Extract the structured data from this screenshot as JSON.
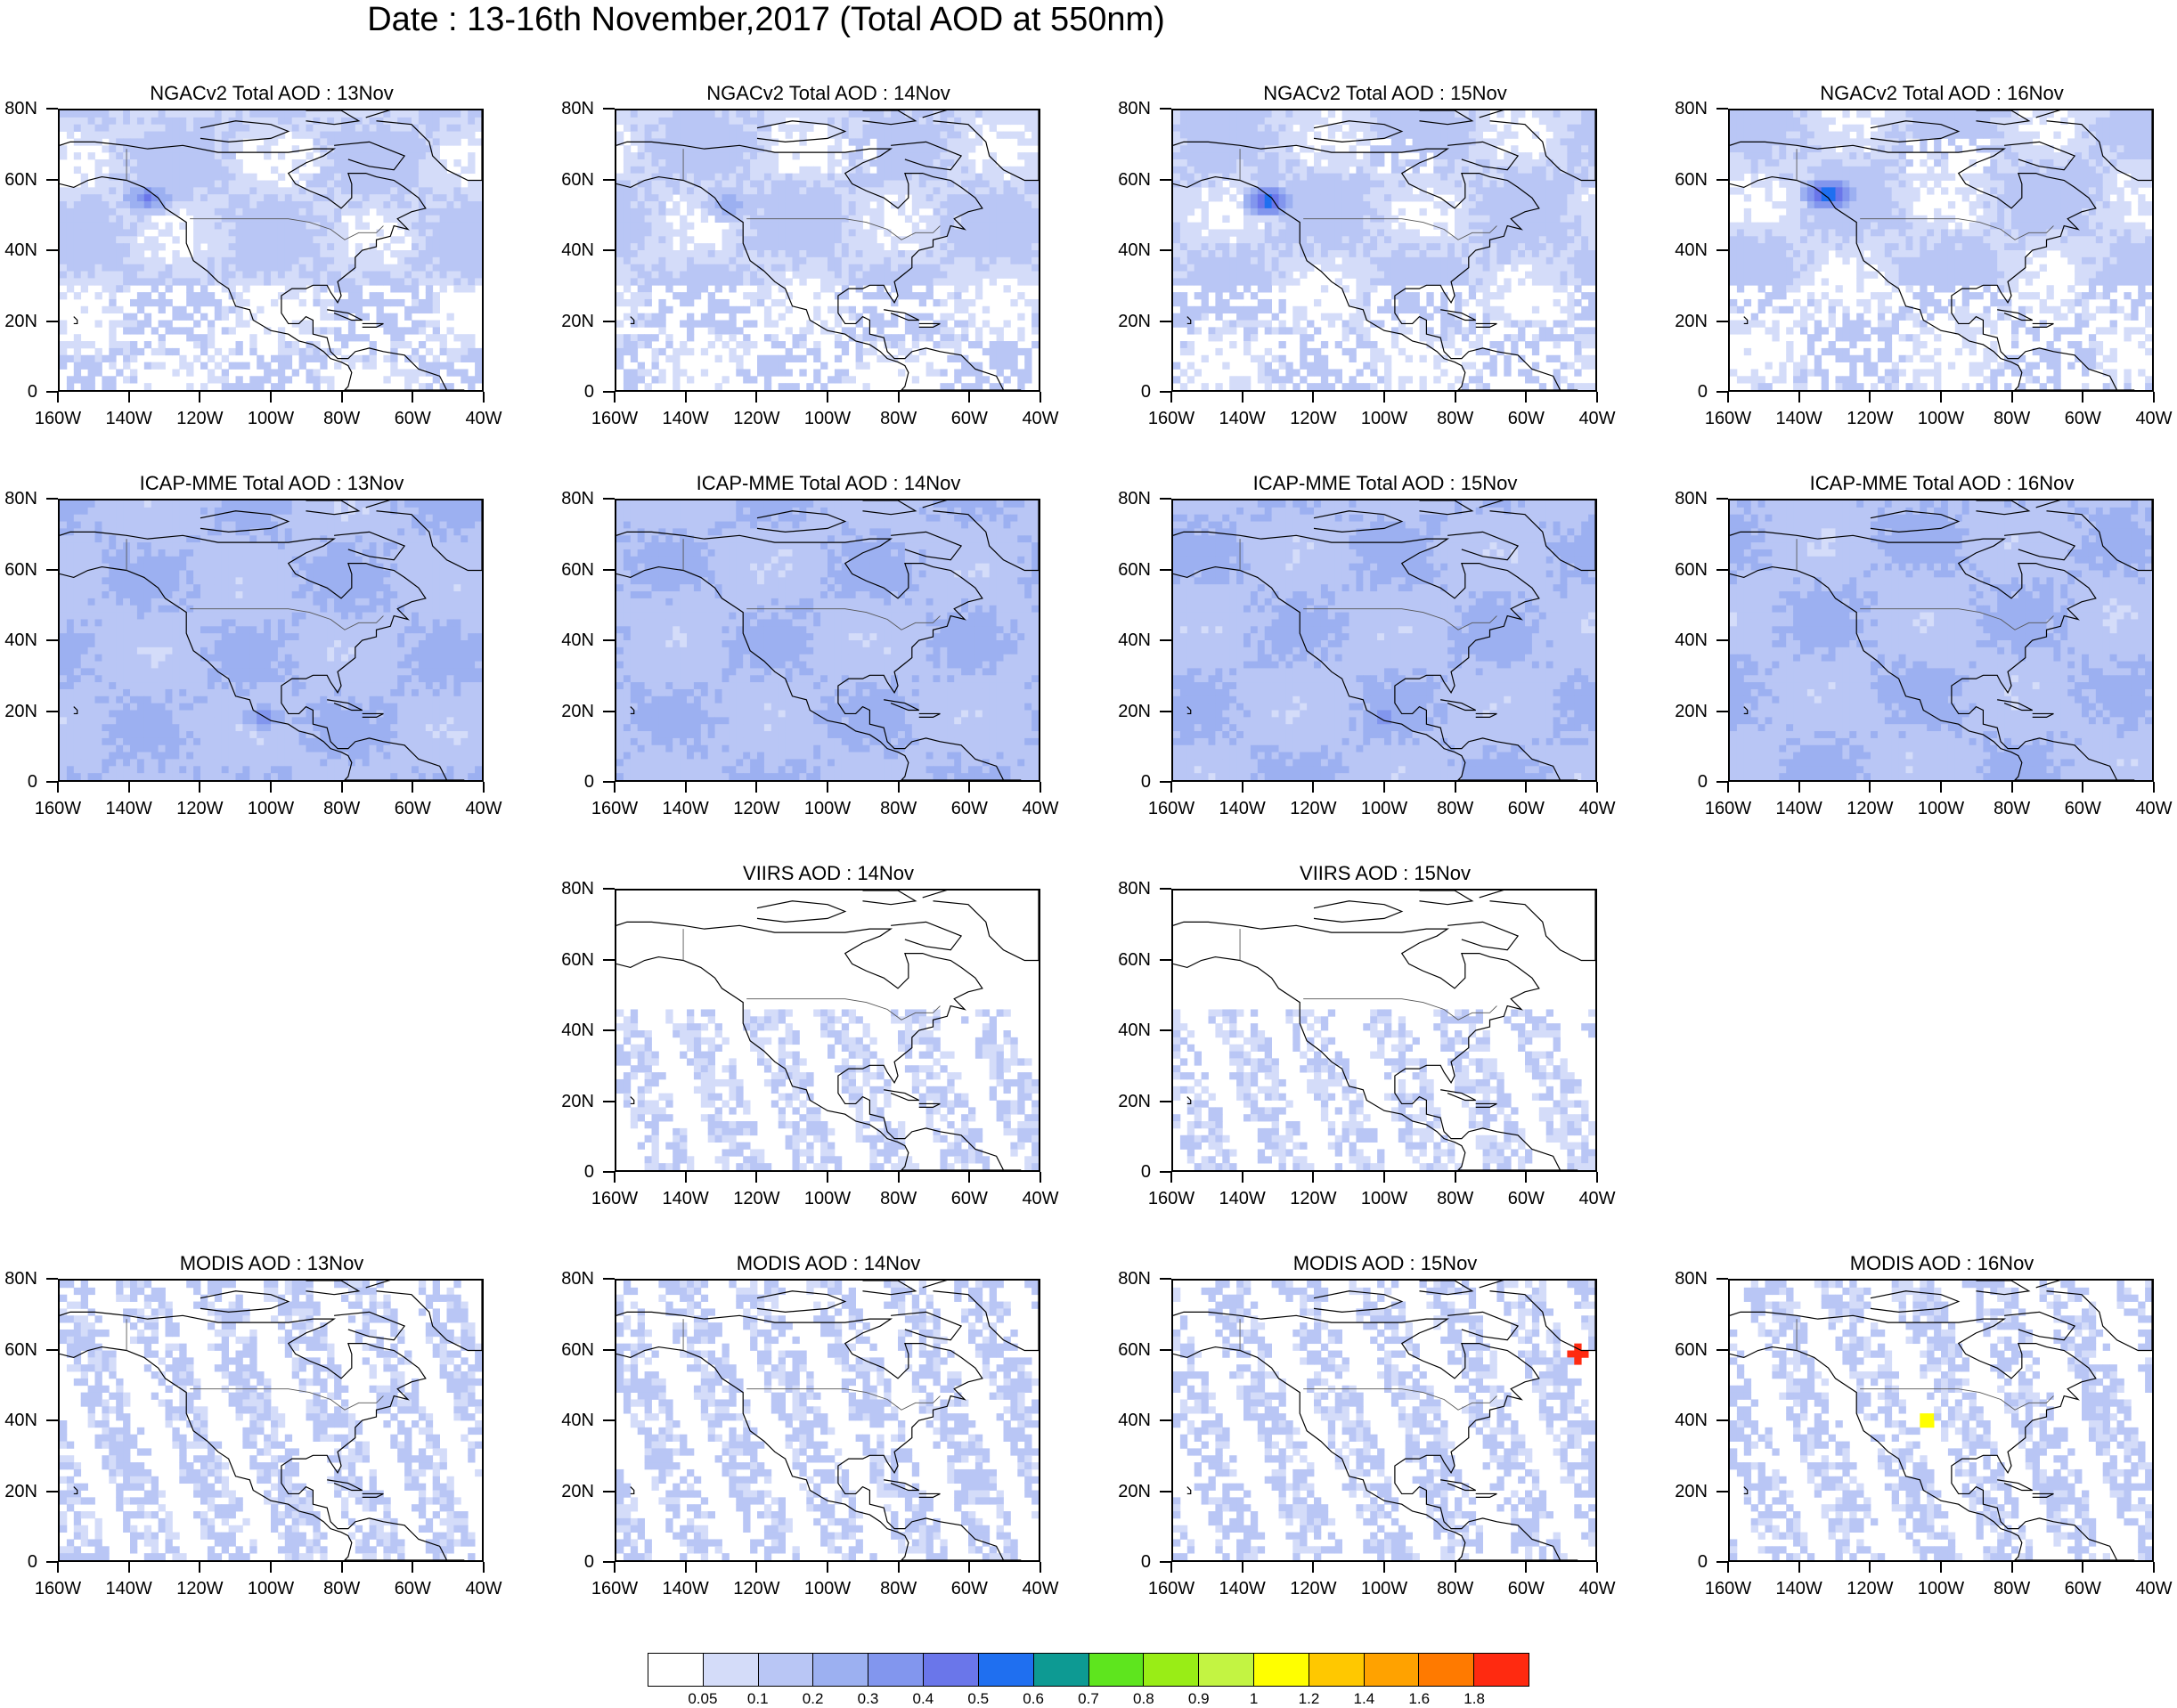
{
  "title": "Date : 13-16th November,2017 (Total AOD at 550nm)",
  "axes": {
    "lat_labels": [
      "80N",
      "60N",
      "40N",
      "20N",
      "0"
    ],
    "lon_labels": [
      "160W",
      "140W",
      "120W",
      "100W",
      "80W",
      "60W",
      "40W"
    ],
    "lat_range": [
      0,
      80
    ],
    "lon_range": [
      -160,
      -40
    ]
  },
  "panels": [
    {
      "title": "NGACv2 Total AOD : 13Nov",
      "model": "NGACv2",
      "day": "13Nov",
      "coverage": "full",
      "base_aod": 0.1,
      "background": "light",
      "plume": [
        -135,
        55,
        0.45
      ]
    },
    {
      "title": "NGACv2 Total AOD : 14Nov",
      "model": "NGACv2",
      "day": "14Nov",
      "coverage": "full",
      "base_aod": 0.1,
      "background": "light",
      "plume": [
        -128,
        53,
        0.3
      ]
    },
    {
      "title": "NGACv2 Total AOD : 15Nov",
      "model": "NGACv2",
      "day": "15Nov",
      "coverage": "full",
      "base_aod": 0.1,
      "background": "light",
      "plume": [
        -133,
        54,
        0.6
      ]
    },
    {
      "title": "NGACv2 Total AOD : 16Nov",
      "model": "NGACv2",
      "day": "16Nov",
      "coverage": "full",
      "base_aod": 0.1,
      "background": "light",
      "plume": [
        -132,
        56,
        0.65
      ]
    },
    {
      "title": "ICAP-MME Total AOD : 13Nov",
      "model": "ICAP-MME",
      "day": "13Nov",
      "coverage": "full",
      "base_aod": 0.15,
      "background": "medium",
      "plume": [
        -102,
        18,
        0.4
      ]
    },
    {
      "title": "ICAP-MME Total AOD : 14Nov",
      "model": "ICAP-MME",
      "day": "14Nov",
      "coverage": "full",
      "base_aod": 0.15,
      "background": "medium",
      "plume": [
        -100,
        18,
        0.35
      ]
    },
    {
      "title": "ICAP-MME Total AOD : 15Nov",
      "model": "ICAP-MME",
      "day": "15Nov",
      "coverage": "full",
      "base_aod": 0.15,
      "background": "medium",
      "plume": [
        -100,
        18,
        0.4
      ]
    },
    {
      "title": "ICAP-MME Total AOD : 16Nov",
      "model": "ICAP-MME",
      "day": "16Nov",
      "coverage": "full",
      "base_aod": 0.15,
      "background": "medium",
      "plume": [
        -98,
        18,
        0.35
      ]
    },
    {
      "title": "VIIRS AOD : 14Nov",
      "model": "VIIRS",
      "day": "14Nov",
      "coverage": "swath-south",
      "base_aod": 0.1
    },
    {
      "title": "VIIRS AOD : 15Nov",
      "model": "VIIRS",
      "day": "15Nov",
      "coverage": "swath-south",
      "base_aod": 0.1
    },
    {
      "title": "MODIS AOD : 13Nov",
      "model": "MODIS",
      "day": "13Nov",
      "coverage": "swath",
      "base_aod": 0.12
    },
    {
      "title": "MODIS AOD : 14Nov",
      "model": "MODIS",
      "day": "14Nov",
      "coverage": "swath",
      "base_aod": 0.12
    },
    {
      "title": "MODIS AOD : 15Nov",
      "model": "MODIS",
      "day": "15Nov",
      "coverage": "swath",
      "base_aod": 0.12,
      "hotspot": [
        -45,
        59,
        1.8
      ]
    },
    {
      "title": "MODIS AOD : 16Nov",
      "model": "MODIS",
      "day": "16Nov",
      "coverage": "swath",
      "base_aod": 0.12,
      "hotspot": [
        -104,
        40,
        1.0
      ]
    }
  ],
  "colorbar": {
    "labels": [
      "0.05",
      "0.1",
      "0.2",
      "0.3",
      "0.4",
      "0.5",
      "0.6",
      "0.7",
      "0.8",
      "0.9",
      "1",
      "1.2",
      "1.4",
      "1.6",
      "1.8"
    ],
    "levels": [
      0.05,
      0.1,
      0.2,
      0.3,
      0.4,
      0.5,
      0.6,
      0.7,
      0.8,
      0.9,
      1,
      1.2,
      1.4,
      1.6,
      1.8
    ],
    "colors": [
      "#ffffff",
      "#d4dcf9",
      "#b9c6f5",
      "#9cb0f1",
      "#8296ee",
      "#6a76ea",
      "#1f6ff0",
      "#0d9a93",
      "#5ee51e",
      "#99ed16",
      "#c3f442",
      "#ffff00",
      "#ffc800",
      "#ffa200",
      "#ff7a00",
      "#ff2a10"
    ]
  }
}
